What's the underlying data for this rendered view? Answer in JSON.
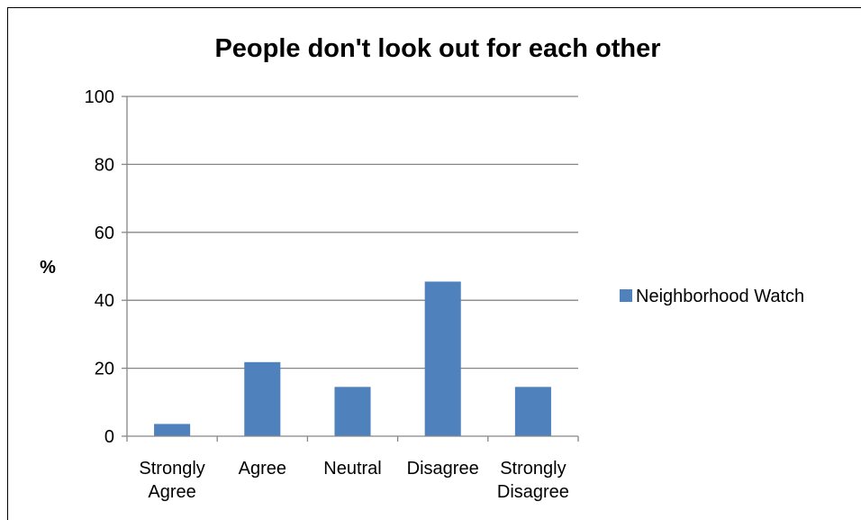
{
  "chart_data": {
    "type": "bar",
    "title": "People don't look out for each other",
    "ylabel": "%",
    "xlabel": "",
    "categories": [
      [
        "Strongly",
        "Agree"
      ],
      [
        "Agree"
      ],
      [
        "Neutral"
      ],
      [
        "Disagree"
      ],
      [
        "Strongly",
        "Disagree"
      ]
    ],
    "series": [
      {
        "name": "Neighborhood Watch",
        "values": [
          3.6,
          21.8,
          14.5,
          45.5,
          14.5
        ],
        "color": "#4f81bd"
      }
    ],
    "ylim": [
      0,
      100
    ],
    "yticks": [
      0,
      20,
      40,
      60,
      80,
      100
    ],
    "grid": true,
    "legend_position": "right"
  }
}
